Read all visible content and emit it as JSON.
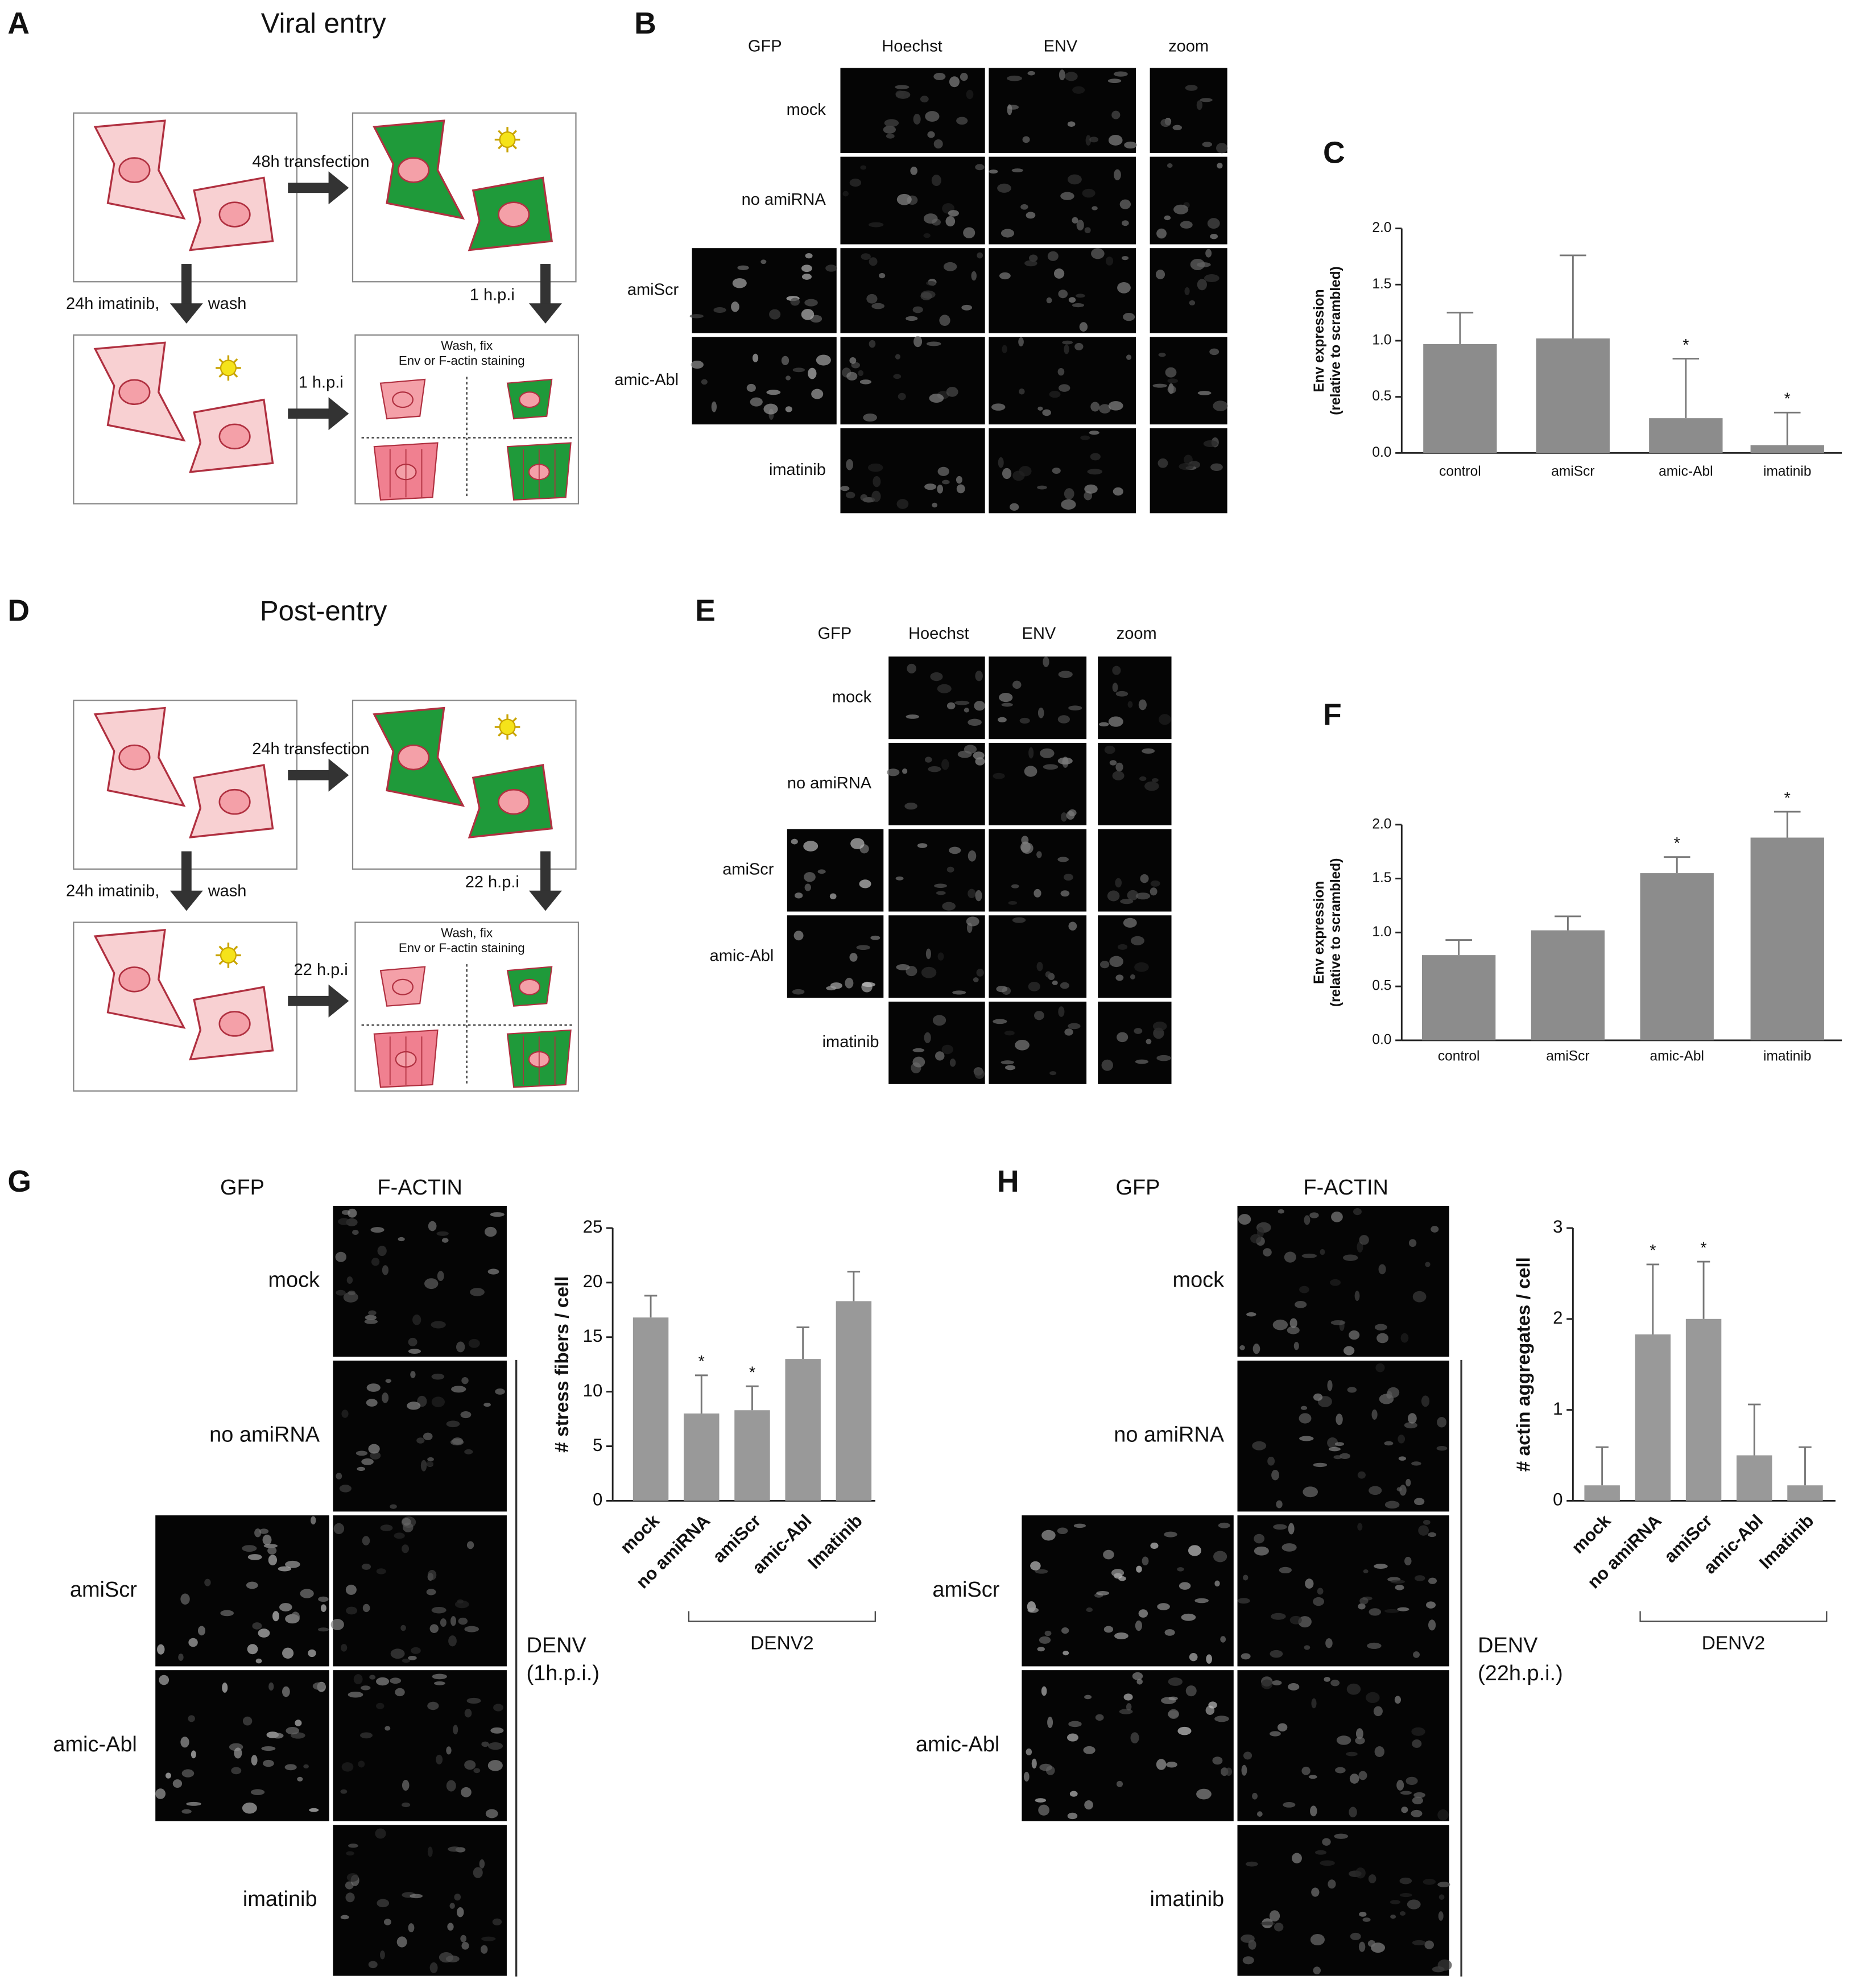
{
  "figure": {
    "panel_a": {
      "letter": "A",
      "title": "Viral entry",
      "steps": [
        "48h transfection",
        "24h imatinib,",
        "wash",
        "1 h.p.i",
        "1 h.p.i",
        "Wash, fix",
        "Env or F-actin staining"
      ]
    },
    "panel_b": {
      "letter": "B",
      "columns": [
        "GFP",
        "Hoechst",
        "ENV",
        "zoom"
      ],
      "rows": [
        "mock",
        "no amiRNA",
        "amiScr",
        "amic-Abl",
        "imatinib"
      ]
    },
    "panel_d": {
      "letter": "D",
      "title": "Post-entry",
      "steps": [
        "24h transfection",
        "24h imatinib,",
        "wash",
        "22 h.p.i",
        "22 h.p.i",
        "Wash, fix",
        "Env or F-actin staining"
      ]
    },
    "panel_e": {
      "letter": "E",
      "columns": [
        "GFP",
        "Hoechst",
        "ENV",
        "zoom"
      ],
      "rows": [
        "mock",
        "no amiRNA",
        "amiScr",
        "amic-Abl",
        "imatinib"
      ]
    },
    "panel_g": {
      "letter": "G",
      "columns": [
        "GFP",
        "F-ACTIN"
      ],
      "rows": [
        "mock",
        "no amiRNA",
        "amiScr",
        "amic-Abl",
        "imatinib"
      ],
      "condition": [
        "DENV",
        "(1h.p.i.)"
      ]
    },
    "panel_h": {
      "letter": "H",
      "columns": [
        "GFP",
        "F-ACTIN"
      ],
      "rows": [
        "mock",
        "no amiRNA",
        "amiScr",
        "amic-Abl",
        "imatinib"
      ],
      "condition": [
        "DENV",
        "(22h.p.i.)"
      ]
    }
  },
  "chart_data": [
    {
      "type": "bar",
      "panel": "C",
      "ylabel": [
        "Env expression",
        "(relative to scrambled)"
      ],
      "categories": [
        "control",
        "amiScr",
        "amic-Abl",
        "imatinib"
      ],
      "values": [
        0.97,
        1.02,
        0.31,
        0.07
      ],
      "errors": [
        0.28,
        0.74,
        0.53,
        0.29
      ],
      "significance": [
        null,
        null,
        "*",
        "*"
      ],
      "color": "#8c8c8c",
      "ylim": [
        0,
        2
      ],
      "yticks": [
        {
          "value": 0,
          "label": "0.0"
        },
        {
          "value": 0.5,
          "label": "0.5"
        },
        {
          "value": 1,
          "label": "1.0"
        },
        {
          "value": 1.5,
          "label": "1.5"
        },
        {
          "value": 2,
          "label": "2.0"
        }
      ]
    },
    {
      "type": "bar",
      "panel": "F",
      "ylabel": [
        "Env expression",
        "(relative to scrambled)"
      ],
      "categories": [
        "control",
        "amiScr",
        "amic-Abl",
        "imatinib"
      ],
      "values": [
        0.79,
        1.02,
        1.55,
        1.88
      ],
      "errors": [
        0.14,
        0.13,
        0.15,
        0.24
      ],
      "significance": [
        null,
        null,
        "*",
        "*"
      ],
      "color": "#8c8c8c",
      "ylim": [
        0,
        2
      ],
      "yticks": [
        {
          "value": 0,
          "label": "0.0"
        },
        {
          "value": 0.5,
          "label": "0.5"
        },
        {
          "value": 1,
          "label": "1.0"
        },
        {
          "value": 1.5,
          "label": "1.5"
        },
        {
          "value": 2,
          "label": "2.0"
        }
      ]
    },
    {
      "type": "bar",
      "panel": "G",
      "ylabel": [
        "# stress fibers / cell"
      ],
      "categories": [
        "mock",
        "no amiRNA",
        "amiScr",
        "amic-Abl",
        "Imatinib"
      ],
      "values": [
        16.8,
        8,
        8.3,
        13,
        18.3
      ],
      "errors": [
        2,
        3.5,
        2.2,
        2.9,
        2.7
      ],
      "significance": [
        null,
        "*",
        "*",
        null,
        null
      ],
      "color": "#999999",
      "ylim": [
        0,
        25
      ],
      "yticks": [
        0,
        5,
        10,
        15,
        20,
        25
      ],
      "group_label": "DENV2"
    },
    {
      "type": "bar",
      "panel": "H",
      "ylabel": [
        "# actin aggregates / cell"
      ],
      "categories": [
        "mock",
        "no amiRNA",
        "amiScr",
        "amic-Abl",
        "Imatinib"
      ],
      "values": [
        0.17,
        1.83,
        2,
        0.5,
        0.17
      ],
      "errors": [
        0.42,
        0.77,
        0.63,
        0.56,
        0.42
      ],
      "significance": [
        null,
        "*",
        "*",
        null,
        null
      ],
      "color": "#999999",
      "ylim": [
        0,
        3
      ],
      "yticks": [
        0,
        1,
        2,
        3
      ],
      "group_label": "DENV2"
    }
  ]
}
